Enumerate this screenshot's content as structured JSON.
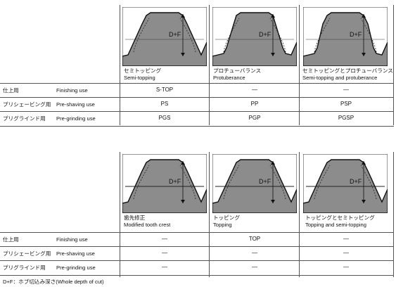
{
  "table1": {
    "columns": [
      {
        "jp": "セミトッピング",
        "en": "Semi-topping",
        "variant": "semi"
      },
      {
        "jp": "プロチューバランス",
        "en": "Protuberance",
        "variant": "prot"
      },
      {
        "jp": "セミトッピングとプロチューバランス",
        "en": "Semi-topping and protuberance",
        "variant": "semiprot"
      }
    ],
    "rows": [
      {
        "jp": "仕上用",
        "en": "Finishing use",
        "values": [
          "S-TOP",
          "—",
          "—"
        ]
      },
      {
        "jp": "プリシェービング用",
        "en": "Pre-shaving use",
        "values": [
          "PS",
          "PP",
          "PSP"
        ]
      },
      {
        "jp": "プリグラインド用",
        "en": "Pre-grinding use",
        "values": [
          "PGS",
          "PGP",
          "PGSP"
        ]
      }
    ]
  },
  "table2": {
    "columns": [
      {
        "jp": "歯先修正",
        "en": "Modified tooth crest",
        "variant": "crest"
      },
      {
        "jp": "トッピング",
        "en": "Topping",
        "variant": "top"
      },
      {
        "jp": "トッピングとセミトッピング",
        "en": "Topping and semi-topping",
        "variant": "topsemi"
      }
    ],
    "rows": [
      {
        "jp": "仕上用",
        "en": "Finishing use",
        "values": [
          "—",
          "TOP",
          "—"
        ]
      },
      {
        "jp": "プリシェービング用",
        "en": "Pre-shaving use",
        "values": [
          "—",
          "—",
          "—"
        ]
      },
      {
        "jp": "プリグラインド用",
        "en": "Pre-grinding use",
        "values": [
          "—",
          "—",
          "—"
        ]
      }
    ]
  },
  "dimension_label": "D+F",
  "footnote": "D+F：ホブ切込み深さ(Whole depth of cut)"
}
